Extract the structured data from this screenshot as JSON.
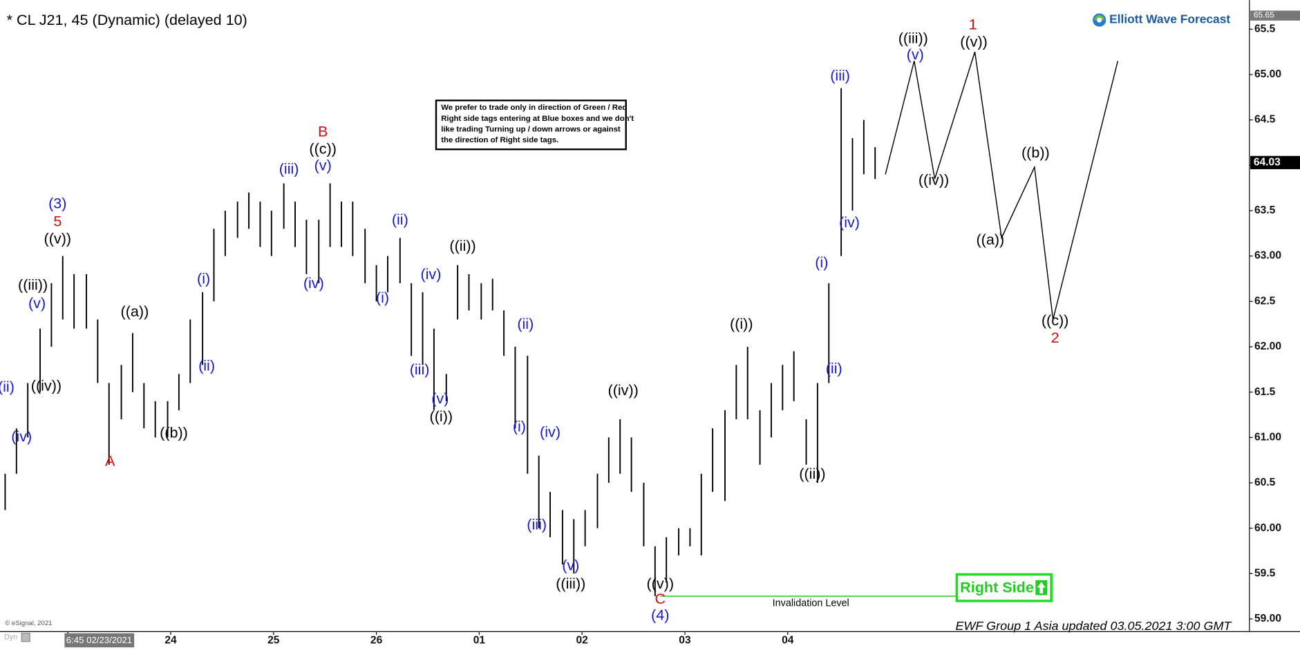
{
  "chart_data": {
    "type": "hl",
    "title": "* CL J21, 45 (Dynamic) (delayed 10)",
    "brand": "Elliott Wave Forecast",
    "footer": "EWF Group 1 Asia updated 03.05.2021 3:00 GMT",
    "copyright": "© eSignal, 2021",
    "mode_label": "Dyn",
    "note": [
      "We prefer to trade only in direction of Green / Red",
      "Right side tags entering at Blue boxes and we don't",
      "like trading Turning up / down arrows or against",
      "the direction of Right side tags."
    ],
    "right_side": "Right Side",
    "bar_color": "#000000",
    "x": [
      -0.61,
      -0.5,
      -0.39,
      -0.27,
      -0.16,
      -0.05,
      0.06,
      0.18,
      0.29,
      0.4,
      0.52,
      0.63,
      0.74,
      0.85,
      0.97,
      1.08,
      1.19,
      1.31,
      1.42,
      1.53,
      1.65,
      1.76,
      1.87,
      1.98,
      2.1,
      2.21,
      2.32,
      2.44,
      2.55,
      2.66,
      2.77,
      2.89,
      3.0,
      3.11,
      3.23,
      3.34,
      3.45,
      3.56,
      3.68,
      3.79,
      3.9,
      4.02,
      4.13,
      4.24,
      4.35,
      4.47,
      4.58,
      4.69,
      4.81,
      4.92,
      5.03,
      5.15,
      5.26,
      5.37,
      5.48,
      5.6,
      5.71,
      5.82,
      5.94,
      6.05,
      6.16,
      6.27,
      6.39,
      6.5,
      6.61,
      6.73,
      6.84,
      6.95,
      7.06,
      7.18,
      7.29,
      7.4,
      7.52,
      7.63,
      7.74,
      7.85
    ],
    "high": [
      60.6,
      61.1,
      61.6,
      62.2,
      62.7,
      63.0,
      62.8,
      62.8,
      62.3,
      61.6,
      61.8,
      62.15,
      61.6,
      61.4,
      61.4,
      61.7,
      62.3,
      62.6,
      63.3,
      63.5,
      63.6,
      63.7,
      63.6,
      63.5,
      63.8,
      63.6,
      63.4,
      63.4,
      63.8,
      63.6,
      63.6,
      63.3,
      62.9,
      63.0,
      63.2,
      62.7,
      62.6,
      62.2,
      61.7,
      62.9,
      62.8,
      62.7,
      62.75,
      62.4,
      62.0,
      61.9,
      60.8,
      60.4,
      60.2,
      60.1,
      60.2,
      60.6,
      61.0,
      61.2,
      61.0,
      60.5,
      59.8,
      59.9,
      60.0,
      60.0,
      60.6,
      61.1,
      61.3,
      61.8,
      62.0,
      61.3,
      61.6,
      61.8,
      61.95,
      61.2,
      61.6,
      62.7,
      64.85,
      64.3,
      64.5,
      64.2
    ],
    "low": [
      60.2,
      60.6,
      61.0,
      61.5,
      62.0,
      62.3,
      62.2,
      62.2,
      61.6,
      60.7,
      61.2,
      61.5,
      61.1,
      61.0,
      61.0,
      61.3,
      61.6,
      61.8,
      62.5,
      63.0,
      63.2,
      63.3,
      63.1,
      63.0,
      63.3,
      63.1,
      62.8,
      62.7,
      63.1,
      63.1,
      63.0,
      62.7,
      62.5,
      62.6,
      62.7,
      61.9,
      61.8,
      61.3,
      61.4,
      62.3,
      62.4,
      62.3,
      62.4,
      61.9,
      61.1,
      60.6,
      60.0,
      59.9,
      59.6,
      59.5,
      59.8,
      60.0,
      60.5,
      60.6,
      60.4,
      59.8,
      59.25,
      59.4,
      59.7,
      59.8,
      59.7,
      60.4,
      60.3,
      61.2,
      61.2,
      60.7,
      61.0,
      61.3,
      61.4,
      60.7,
      60.5,
      61.6,
      63.0,
      63.5,
      63.9,
      63.85
    ],
    "projection": {
      "color": "#000000",
      "x": [
        7.95,
        8.23,
        8.43,
        8.82,
        9.08,
        9.4,
        9.58,
        10.21
      ],
      "y": [
        63.9,
        65.15,
        63.85,
        65.25,
        63.2,
        63.98,
        62.3,
        65.15
      ]
    },
    "invalidation": {
      "label": "Invalidation Level",
      "value": 59.25,
      "from": 5.76,
      "to": 8.69,
      "color": "#22cc22"
    },
    "last_price": 64.03,
    "top_price": 65.65,
    "xlim": [
      -0.66,
      11.49
    ],
    "ylim": [
      58.86,
      65.82
    ],
    "xticks": [
      {
        "value": 0,
        "label": "6:45 02/23/2021"
      },
      {
        "value": 1,
        "label": "24"
      },
      {
        "value": 2,
        "label": "25"
      },
      {
        "value": 3,
        "label": "26"
      },
      {
        "value": 4,
        "label": "01"
      },
      {
        "value": 5,
        "label": "02"
      },
      {
        "value": 6,
        "label": "03"
      },
      {
        "value": 7,
        "label": "04"
      }
    ],
    "yticks": [
      {
        "value": 59,
        "label": "59.00"
      },
      59.5,
      {
        "value": 60,
        "label": "60.00"
      },
      60.5,
      {
        "value": 61,
        "label": "61.00"
      },
      61.5,
      {
        "value": 62,
        "label": "62.00"
      },
      62.5,
      {
        "value": 63,
        "label": "63.00"
      },
      63.5,
      {
        "value": 64,
        "label": "64.00"
      },
      64.5,
      {
        "value": 65,
        "label": "65.00"
      },
      65.5
    ],
    "grid": false,
    "annotations": [
      {
        "text": "(ii)",
        "x": -0.6,
        "y": 61.55,
        "color": "#1a1acc"
      },
      {
        "text": "(iv)",
        "x": -0.45,
        "y": 61.0,
        "color": "#1a1acc"
      },
      {
        "text": "((iv))",
        "x": -0.21,
        "y": 61.56,
        "color": "#000000"
      },
      {
        "text": "(v)",
        "x": -0.3,
        "y": 62.47,
        "color": "#1a1acc"
      },
      {
        "text": "((iii))",
        "x": -0.34,
        "y": 62.67,
        "color": "#000000"
      },
      {
        "text": "((v))",
        "x": -0.1,
        "y": 63.18,
        "color": "#000000"
      },
      {
        "text": "5",
        "x": -0.1,
        "y": 63.37,
        "color": "#d01010"
      },
      {
        "text": "(3)",
        "x": -0.1,
        "y": 63.57,
        "color": "#1a1acc"
      },
      {
        "text": "A",
        "x": 0.41,
        "y": 60.73,
        "color": "#d01010"
      },
      {
        "text": "((a))",
        "x": 0.65,
        "y": 62.38,
        "color": "#000000"
      },
      {
        "text": "((b))",
        "x": 1.03,
        "y": 61.04,
        "color": "#000000"
      },
      {
        "text": "(ii)",
        "x": 1.35,
        "y": 61.78,
        "color": "#1a1acc"
      },
      {
        "text": "(i)",
        "x": 1.32,
        "y": 62.74,
        "color": "#1a1acc"
      },
      {
        "text": "(iii)",
        "x": 2.15,
        "y": 63.95,
        "color": "#1a1acc"
      },
      {
        "text": "(iv)",
        "x": 2.39,
        "y": 62.69,
        "color": "#1a1acc"
      },
      {
        "text": "(v)",
        "x": 2.48,
        "y": 63.99,
        "color": "#1a1acc"
      },
      {
        "text": "((c))",
        "x": 2.48,
        "y": 64.17,
        "color": "#000000"
      },
      {
        "text": "B",
        "x": 2.48,
        "y": 64.36,
        "color": "#d01010"
      },
      {
        "text": "(ii)",
        "x": 3.23,
        "y": 63.39,
        "color": "#1a1acc"
      },
      {
        "text": "(i)",
        "x": 3.06,
        "y": 62.53,
        "color": "#1a1acc"
      },
      {
        "text": "(iv)",
        "x": 3.53,
        "y": 62.79,
        "color": "#1a1acc"
      },
      {
        "text": "(iii)",
        "x": 3.42,
        "y": 61.74,
        "color": "#1a1acc"
      },
      {
        "text": "(v)",
        "x": 3.62,
        "y": 61.42,
        "color": "#1a1acc"
      },
      {
        "text": "((i))",
        "x": 3.63,
        "y": 61.22,
        "color": "#000000"
      },
      {
        "text": "((ii))",
        "x": 3.84,
        "y": 63.1,
        "color": "#000000"
      },
      {
        "text": "(ii)",
        "x": 4.45,
        "y": 62.24,
        "color": "#1a1acc"
      },
      {
        "text": "(i)",
        "x": 4.39,
        "y": 61.11,
        "color": "#1a1acc"
      },
      {
        "text": "(iv)",
        "x": 4.69,
        "y": 61.05,
        "color": "#1a1acc"
      },
      {
        "text": "(iii)",
        "x": 4.56,
        "y": 60.03,
        "color": "#1a1acc"
      },
      {
        "text": "(v)",
        "x": 4.89,
        "y": 59.58,
        "color": "#1a1acc"
      },
      {
        "text": "((iii))",
        "x": 4.89,
        "y": 59.38,
        "color": "#000000"
      },
      {
        "text": "((iv))",
        "x": 5.4,
        "y": 61.51,
        "color": "#000000"
      },
      {
        "text": "((v))",
        "x": 5.76,
        "y": 59.38,
        "color": "#000000"
      },
      {
        "text": "C",
        "x": 5.76,
        "y": 59.21,
        "color": "#d01010"
      },
      {
        "text": "(4)",
        "x": 5.76,
        "y": 59.03,
        "color": "#1a1acc"
      },
      {
        "text": "((i))",
        "x": 6.55,
        "y": 62.24,
        "color": "#000000"
      },
      {
        "text": "((ii))",
        "x": 7.24,
        "y": 60.59,
        "color": "#000000"
      },
      {
        "text": "(ii)",
        "x": 7.45,
        "y": 61.75,
        "color": "#1a1acc"
      },
      {
        "text": "(i)",
        "x": 7.33,
        "y": 62.92,
        "color": "#1a1acc"
      },
      {
        "text": "(iv)",
        "x": 7.6,
        "y": 63.36,
        "color": "#1a1acc"
      },
      {
        "text": "(iii)",
        "x": 7.51,
        "y": 64.98,
        "color": "#1a1acc"
      },
      {
        "text": "((iii))",
        "x": 8.22,
        "y": 65.39,
        "color": "#000000"
      },
      {
        "text": "(v)",
        "x": 8.24,
        "y": 65.21,
        "color": "#1a1acc"
      },
      {
        "text": "1",
        "x": 8.8,
        "y": 65.54,
        "color": "#d01010"
      },
      {
        "text": "((v))",
        "x": 8.81,
        "y": 65.35,
        "color": "#000000"
      },
      {
        "text": "((iv))",
        "x": 8.42,
        "y": 63.83,
        "color": "#000000"
      },
      {
        "text": "((a))",
        "x": 8.97,
        "y": 63.17,
        "color": "#000000"
      },
      {
        "text": "((b))",
        "x": 9.41,
        "y": 64.13,
        "color": "#000000"
      },
      {
        "text": "((c))",
        "x": 9.6,
        "y": 62.28,
        "color": "#000000"
      },
      {
        "text": "2",
        "x": 9.6,
        "y": 62.09,
        "color": "#d01010"
      }
    ]
  }
}
